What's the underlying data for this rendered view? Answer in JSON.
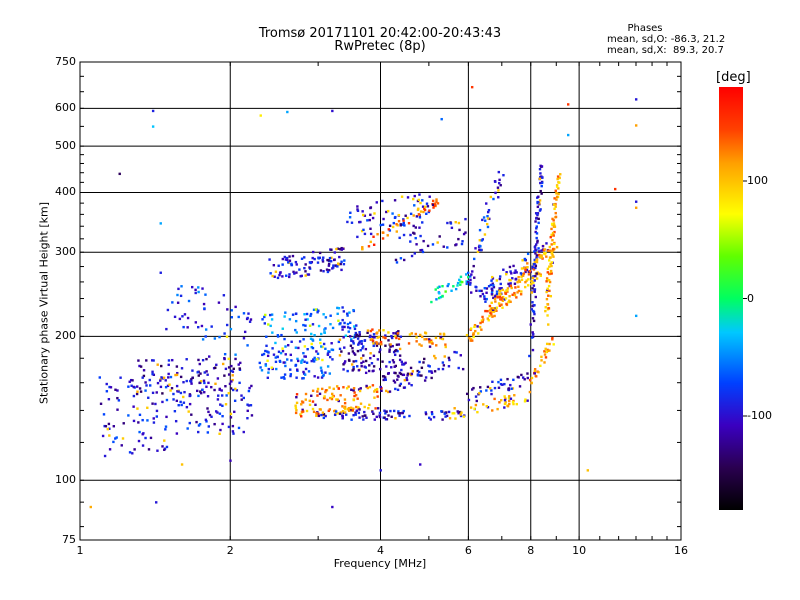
{
  "chart_data": {
    "type": "scatter",
    "title": "Tromsø 20171101 20:42:00-20:43:43",
    "subtitle": "RwPretec (8p)",
    "xlabel": "Frequency [MHz]",
    "ylabel": "Stationary phase Virtual Height [km]",
    "x_scale": "log",
    "y_scale": "log",
    "xlim": [
      1,
      16
    ],
    "ylim": [
      75,
      750
    ],
    "x_ticks": [
      "1",
      "2",
      "4",
      "6",
      "8",
      "10",
      "16"
    ],
    "y_ticks": [
      "75",
      "100",
      "200",
      "300",
      "400",
      "500",
      "600",
      "750"
    ],
    "x_grid_values": [
      2,
      4,
      6,
      8,
      10
    ],
    "y_grid_values": [
      100,
      200,
      300,
      400,
      500,
      600
    ],
    "grid": true,
    "phases": {
      "title": "Phases",
      "o": "mean, sd,O: -86.3, 21.2",
      "x": "mean, sd,X:  89.3, 20.7"
    },
    "colorbar": {
      "label": "[deg]",
      "ticks": [
        "100",
        "0",
        "-100"
      ],
      "tick_values": [
        100,
        0,
        -100
      ],
      "range": [
        -180,
        180
      ]
    },
    "traces": [
      {
        "x0": 1.1,
        "x1": 2.2,
        "h0": 145,
        "h1": 145,
        "spread": 20,
        "phase": -95,
        "count": 160
      },
      {
        "x0": 1.3,
        "x1": 2.1,
        "h0": 165,
        "h1": 168,
        "spread": 14,
        "phase": -110,
        "count": 90
      },
      {
        "x0": 1.5,
        "x1": 2.2,
        "h0": 230,
        "h1": 200,
        "spread": 35,
        "phase": -80,
        "count": 60
      },
      {
        "x0": 1.1,
        "x1": 1.5,
        "h0": 118,
        "h1": 122,
        "spread": 6,
        "phase": -95,
        "count": 25
      },
      {
        "x0": 2.3,
        "x1": 3.2,
        "h0": 175,
        "h1": 180,
        "spread": 15,
        "phase": -75,
        "count": 110
      },
      {
        "x0": 2.3,
        "x1": 3.6,
        "h0": 205,
        "h1": 215,
        "spread": 18,
        "phase": -60,
        "count": 90
      },
      {
        "x0": 2.4,
        "x1": 3.4,
        "h0": 278,
        "h1": 292,
        "spread": 16,
        "phase": -100,
        "count": 100
      },
      {
        "x0": 3.3,
        "x1": 4.4,
        "h0": 190,
        "h1": 185,
        "spread": 20,
        "phase": -110,
        "count": 130
      },
      {
        "x0": 2.7,
        "x1": 4.0,
        "h0": 145,
        "h1": 150,
        "spread": 10,
        "phase": 120,
        "count": 120
      },
      {
        "x0": 3.4,
        "x1": 5.0,
        "h0": 350,
        "h1": 370,
        "spread": 30,
        "phase": -90,
        "count": 70
      },
      {
        "x0": 3.6,
        "x1": 5.2,
        "h0": 300,
        "h1": 385,
        "spread": 8,
        "phase": 130,
        "count": 45
      },
      {
        "x0": 3.8,
        "x1": 5.5,
        "h0": 200,
        "h1": 196,
        "spread": 7,
        "phase": 120,
        "count": 60
      },
      {
        "x0": 4.0,
        "x1": 5.8,
        "h0": 160,
        "h1": 180,
        "spread": 10,
        "phase": -110,
        "count": 80
      },
      {
        "x0": 5.0,
        "x1": 6.0,
        "h0": 240,
        "h1": 265,
        "spread": 8,
        "phase": -30,
        "count": 30
      },
      {
        "x0": 4.3,
        "x1": 6.0,
        "h0": 305,
        "h1": 335,
        "spread": 20,
        "phase": -100,
        "count": 40
      },
      {
        "x0": 6.0,
        "x1": 8.4,
        "h0": 200,
        "h1": 270,
        "spread": 6,
        "phase": 110,
        "count": 80
      },
      {
        "x0": 6.2,
        "x1": 8.6,
        "h0": 240,
        "h1": 300,
        "spread": 15,
        "phase": -90,
        "count": 90
      },
      {
        "x0": 6.5,
        "x1": 9.0,
        "h0": 225,
        "h1": 310,
        "spread": 8,
        "phase": 115,
        "count": 80
      },
      {
        "x0": 8.0,
        "x1": 8.4,
        "h0": 180,
        "h1": 450,
        "spread": 10,
        "phase": -105,
        "count": 90
      },
      {
        "x0": 8.6,
        "x1": 9.1,
        "h0": 215,
        "h1": 430,
        "spread": 12,
        "phase": 112,
        "count": 90
      },
      {
        "x0": 6.0,
        "x1": 7.0,
        "h0": 250,
        "h1": 440,
        "spread": 18,
        "phase": -95,
        "count": 50
      },
      {
        "x0": 3.0,
        "x1": 5.8,
        "h0": 137,
        "h1": 137,
        "spread": 3,
        "phase": -105,
        "count": 80
      },
      {
        "x0": 5.5,
        "x1": 7.5,
        "h0": 137,
        "h1": 148,
        "spread": 4,
        "phase": 100,
        "count": 40
      },
      {
        "x0": 6.0,
        "x1": 8.0,
        "h0": 150,
        "h1": 165,
        "spread": 5,
        "phase": -100,
        "count": 40
      },
      {
        "x0": 7.8,
        "x1": 8.9,
        "h0": 150,
        "h1": 200,
        "spread": 5,
        "phase": 110,
        "count": 35
      }
    ],
    "points": [
      {
        "x": 1.05,
        "y": 88,
        "phase": 110
      },
      {
        "x": 1.42,
        "y": 90,
        "phase": -95
      },
      {
        "x": 3.2,
        "y": 88,
        "phase": -105
      },
      {
        "x": 1.4,
        "y": 593,
        "phase": -90
      },
      {
        "x": 1.4,
        "y": 550,
        "phase": -30
      },
      {
        "x": 3.2,
        "y": 593,
        "phase": -100
      },
      {
        "x": 2.6,
        "y": 590,
        "phase": -40
      },
      {
        "x": 2.3,
        "y": 580,
        "phase": 80
      },
      {
        "x": 5.3,
        "y": 570,
        "phase": -60
      },
      {
        "x": 6.1,
        "y": 665,
        "phase": 150
      },
      {
        "x": 9.5,
        "y": 612,
        "phase": 150
      },
      {
        "x": 9.5,
        "y": 528,
        "phase": -40
      },
      {
        "x": 13.0,
        "y": 627,
        "phase": -95
      },
      {
        "x": 13.0,
        "y": 553,
        "phase": 115
      },
      {
        "x": 13.0,
        "y": 383,
        "phase": -95
      },
      {
        "x": 13.0,
        "y": 372,
        "phase": 115
      },
      {
        "x": 13.0,
        "y": 221,
        "phase": -40
      },
      {
        "x": 10.4,
        "y": 105,
        "phase": 100
      },
      {
        "x": 11.8,
        "y": 407,
        "phase": 150
      },
      {
        "x": 1.2,
        "y": 438,
        "phase": -140
      },
      {
        "x": 1.45,
        "y": 345,
        "phase": -40
      },
      {
        "x": 1.45,
        "y": 272,
        "phase": -90
      },
      {
        "x": 1.6,
        "y": 108,
        "phase": 100
      },
      {
        "x": 2.0,
        "y": 110,
        "phase": -110
      },
      {
        "x": 4.8,
        "y": 108,
        "phase": -105
      },
      {
        "x": 4.0,
        "y": 105,
        "phase": -95
      }
    ]
  }
}
